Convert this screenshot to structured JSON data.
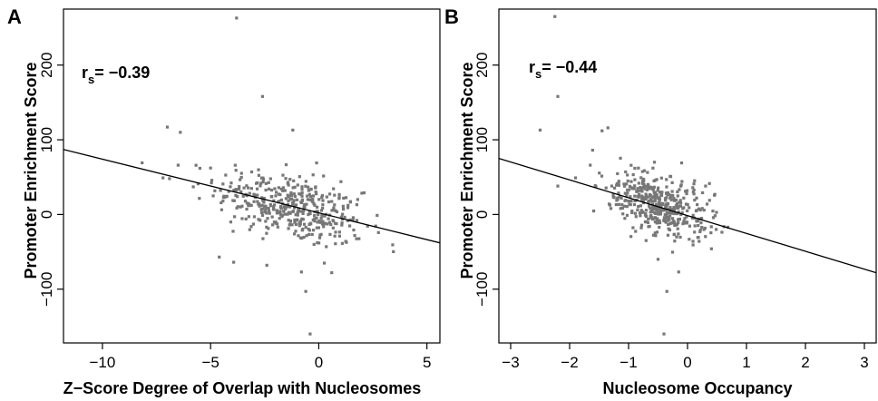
{
  "chart_data": [
    {
      "type": "scatter",
      "panel_label": "A",
      "annotation": {
        "r_symbol": "r",
        "r_subscript": "s",
        "r_value": "= −0.39"
      },
      "xlabel": "Z−Score Degree of Overlap with Nucleosomes",
      "ylabel": "Promoter Enrichment Score",
      "xlim": [
        -11.8,
        5.6
      ],
      "ylim": [
        -172,
        275
      ],
      "xticks": [
        -10,
        -5,
        0,
        5
      ],
      "xtick_labels": [
        "−10",
        "−5",
        "0",
        "5"
      ],
      "yticks": [
        -100,
        0,
        100,
        200
      ],
      "ytick_labels": [
        "−100",
        "0",
        "100",
        "200"
      ],
      "fit_line": {
        "x": [
          -11.8,
          5.6
        ],
        "y": [
          87,
          -38
        ]
      },
      "point_color": "#777777",
      "outliers": [
        [
          -3.8,
          263
        ],
        [
          -2.6,
          158
        ],
        [
          -7.0,
          117
        ],
        [
          -6.4,
          110
        ],
        [
          -1.2,
          113
        ],
        [
          -0.4,
          -160
        ],
        [
          -0.6,
          -103
        ],
        [
          -6.5,
          66
        ],
        [
          -4.6,
          -57
        ],
        [
          -2.4,
          -68
        ],
        [
          -0.8,
          -77
        ],
        [
          0.6,
          -78
        ],
        [
          -0.1,
          69
        ],
        [
          -7.2,
          49
        ],
        [
          -6.9,
          48
        ],
        [
          -5.8,
          37
        ],
        [
          -3.1,
          57
        ],
        [
          2.1,
          29
        ],
        [
          1.8,
          20
        ]
      ],
      "cloud": {
        "n": 420,
        "x_center": -1.3,
        "x_sd": 1.7,
        "y_sd": 22,
        "slope": -7.2,
        "intercept": 0
      }
    },
    {
      "type": "scatter",
      "panel_label": "B",
      "annotation": {
        "r_symbol": "r",
        "r_subscript": "s",
        "r_value": "= −0.44"
      },
      "xlabel": "Nucleosome Occupancy",
      "ylabel": "Promoter Enrichment Score",
      "xlim": [
        -3.2,
        3.2
      ],
      "ylim": [
        -172,
        275
      ],
      "xticks": [
        -3,
        -2,
        -1,
        0,
        1,
        2,
        3
      ],
      "xtick_labels": [
        "−3",
        "−2",
        "−1",
        "0",
        "1",
        "2",
        "3"
      ],
      "yticks": [
        -100,
        0,
        100,
        200
      ],
      "ytick_labels": [
        "−100",
        "0",
        "100",
        "200"
      ],
      "fit_line": {
        "x": [
          -3.2,
          3.2
        ],
        "y": [
          75,
          -78
        ]
      },
      "point_color": "#777777",
      "outliers": [
        [
          -2.25,
          265
        ],
        [
          -2.2,
          158
        ],
        [
          -2.5,
          113
        ],
        [
          -1.35,
          116
        ],
        [
          -1.45,
          112
        ],
        [
          -0.35,
          -103
        ],
        [
          -0.4,
          -160
        ],
        [
          -2.2,
          38
        ],
        [
          -1.9,
          49
        ],
        [
          -1.65,
          66
        ],
        [
          -1.05,
          57
        ],
        [
          -0.1,
          69
        ],
        [
          -0.5,
          -60
        ],
        [
          -0.15,
          -77
        ],
        [
          0.25,
          8
        ]
      ],
      "cloud": {
        "n": 440,
        "x_center": -0.5,
        "x_sd": 0.42,
        "y_sd": 20,
        "slope": -24,
        "intercept": 0
      }
    }
  ]
}
